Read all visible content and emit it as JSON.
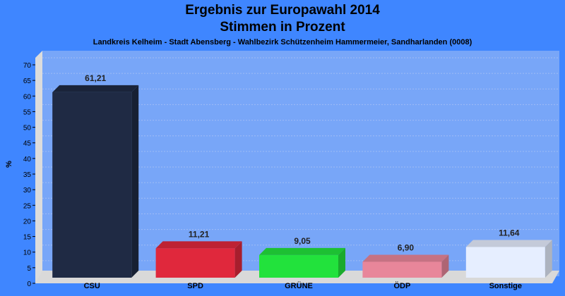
{
  "chart_data": {
    "type": "bar",
    "title": "Ergebnis zur Europawahl 2014",
    "title_line2": "Stimmen in Prozent",
    "subtitle": "Landkreis Kelheim - Stadt Abensberg - Wahlbezirk Schützenheim Hammermeier, Sandharlanden (0008)",
    "ylabel": "%",
    "ylim": [
      0,
      70
    ],
    "yticks": [
      0,
      5,
      10,
      15,
      20,
      25,
      30,
      35,
      40,
      45,
      50,
      55,
      60,
      65,
      70
    ],
    "grid": true,
    "categories": [
      "CSU",
      "SPD",
      "GRÜNE",
      "ÖDP",
      "Sonstige"
    ],
    "values": [
      61.21,
      11.21,
      9.05,
      6.9,
      11.64
    ],
    "value_labels": [
      "61,21",
      "11,21",
      "9,05",
      "6,90",
      "11,64"
    ],
    "colors": [
      "#1f2a44",
      "#e0283c",
      "#22e23c",
      "#e8869a",
      "#e6eeff"
    ],
    "background": "#3f86ff",
    "plot_background": "#78a6f8"
  }
}
